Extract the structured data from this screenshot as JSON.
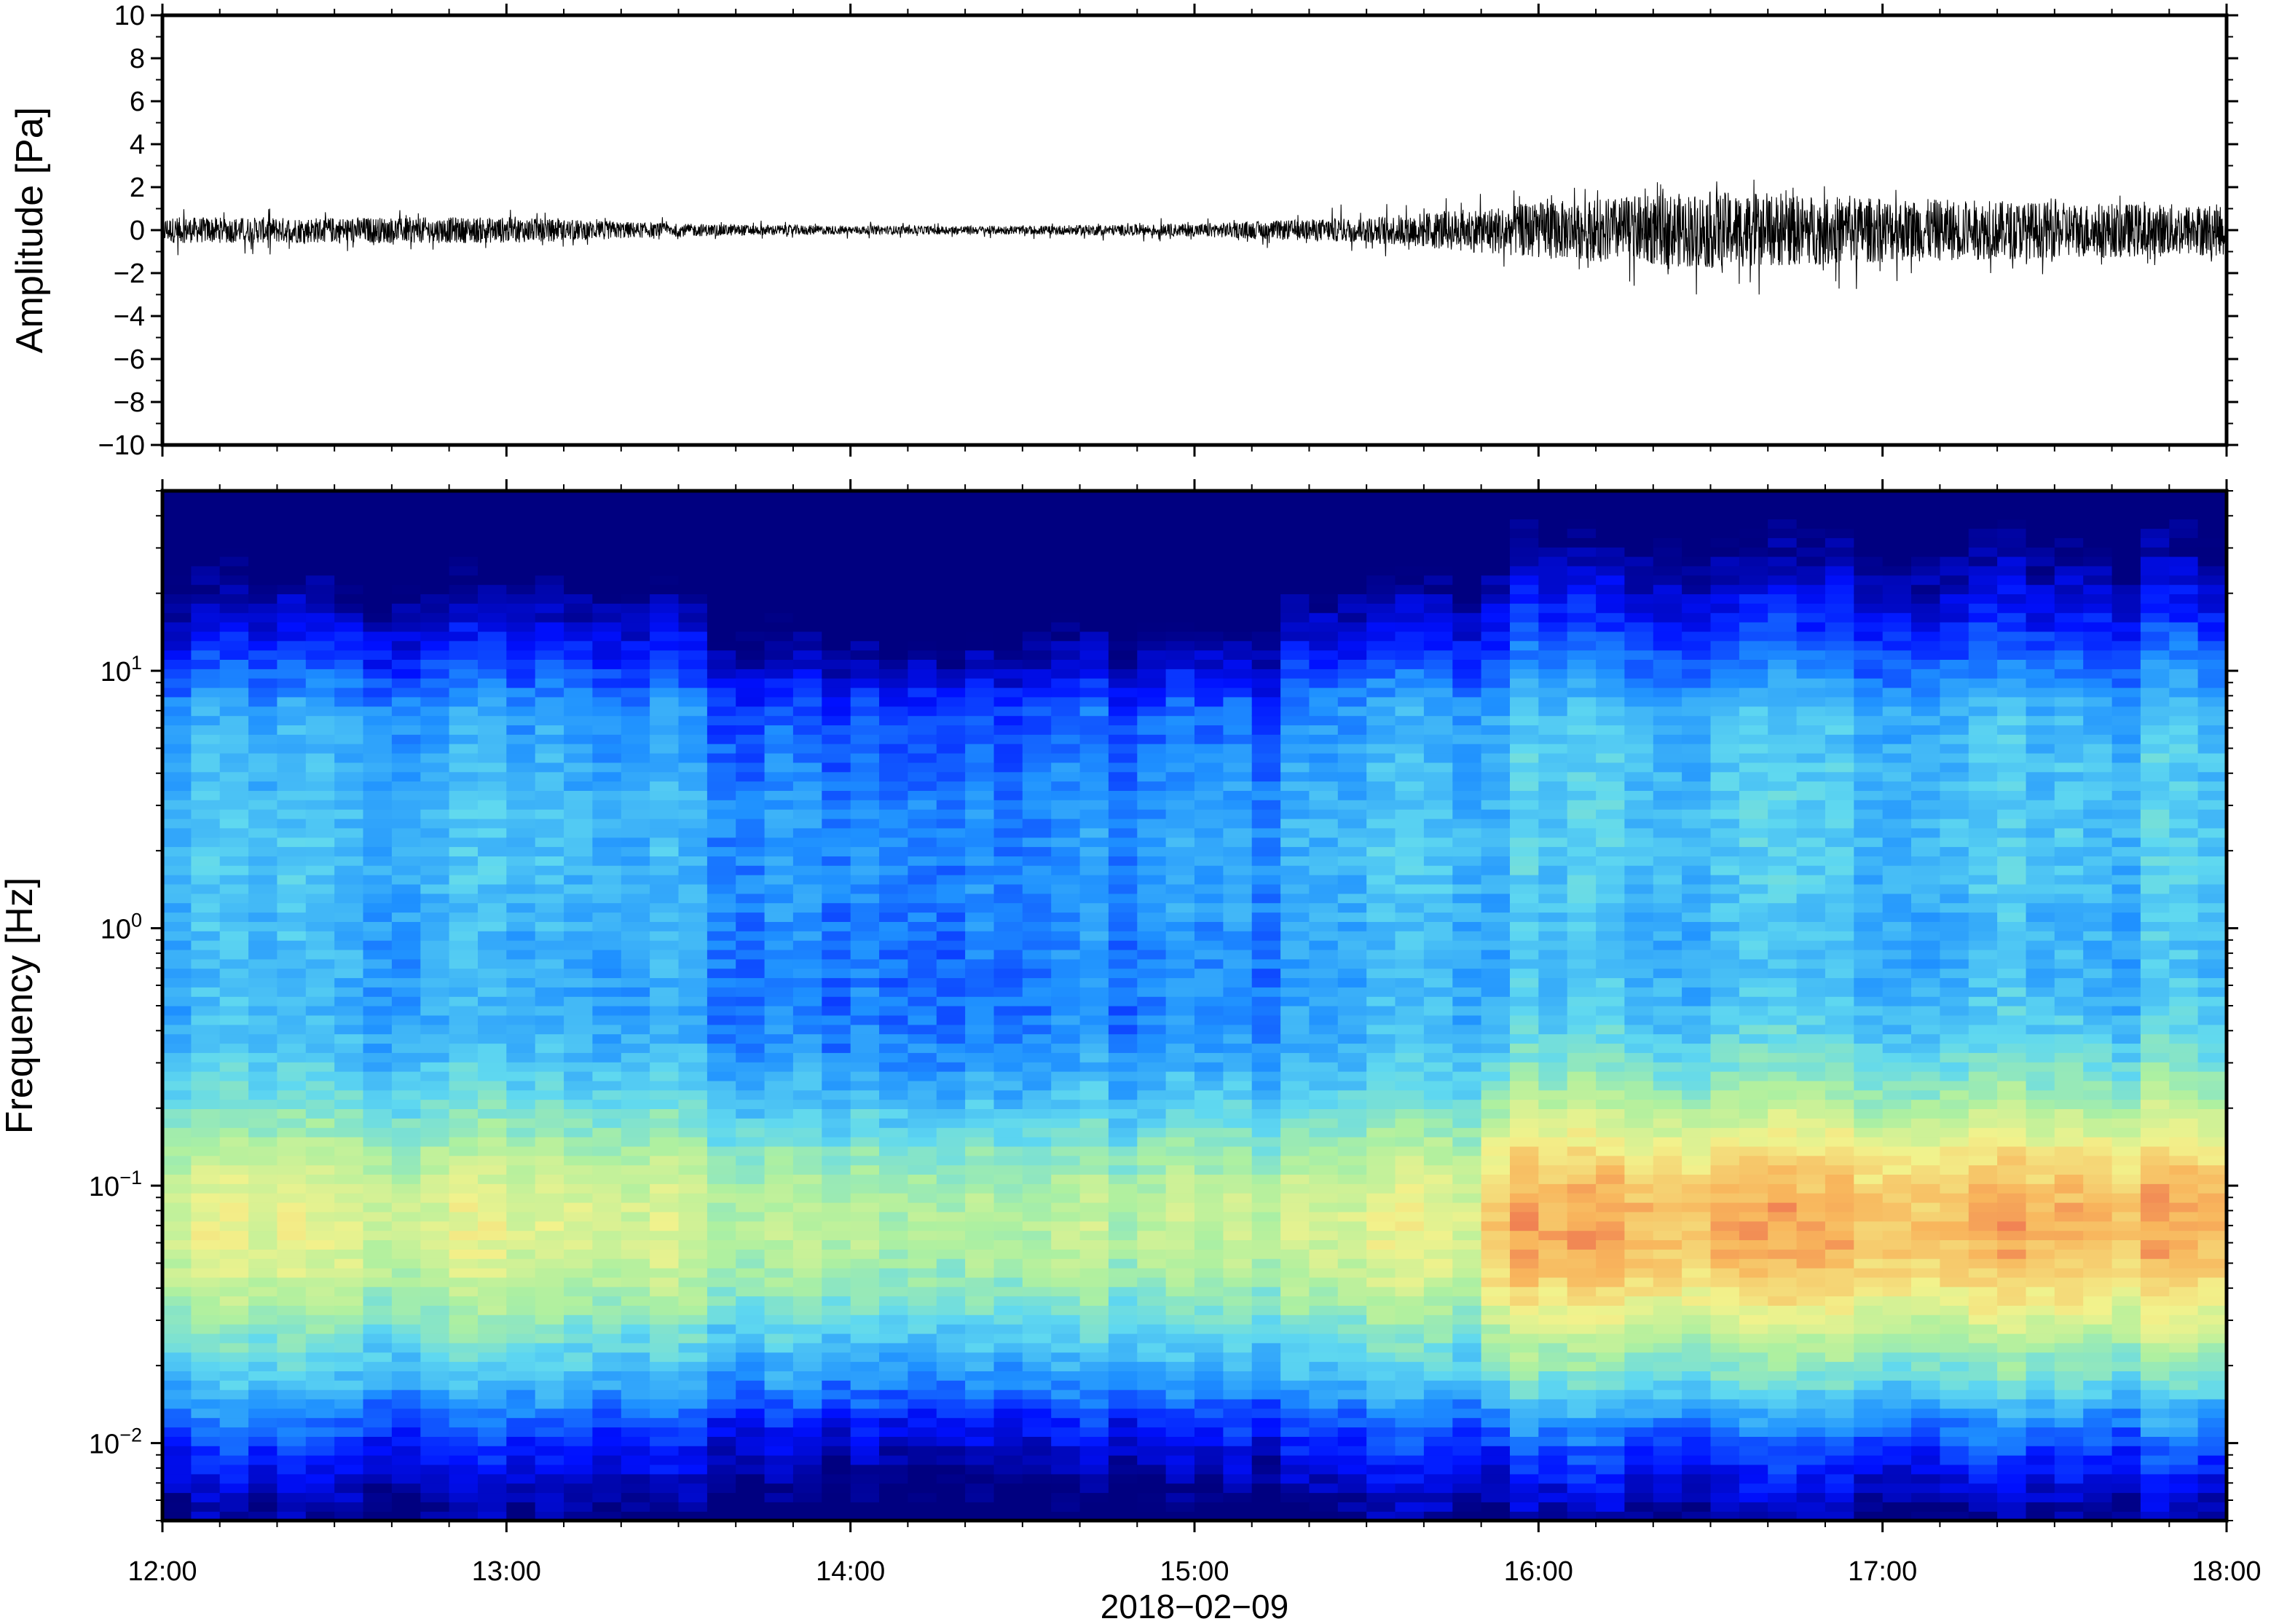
{
  "chart_data": [
    {
      "type": "line",
      "panel": "waveform",
      "ylabel": "Amplitude [Pa]",
      "xlabel": "",
      "xlim": [
        "12:00",
        "18:00"
      ],
      "ylim": [
        -10,
        10
      ],
      "yticks": [
        10,
        8,
        6,
        4,
        2,
        0,
        -2,
        -4,
        -6,
        -8,
        -10
      ],
      "ytick_labels": [
        "10",
        "8",
        "6",
        "4",
        "2",
        "0",
        "−2",
        "−4",
        "−6",
        "−8",
        "−10"
      ],
      "grid": false,
      "color": "#000000",
      "series": [
        {
          "x": [
            "12:00",
            "12:30",
            "13:00",
            "13:30",
            "14:00",
            "14:30",
            "15:00",
            "15:30",
            "16:00",
            "16:30",
            "17:00",
            "17:30",
            "18:00"
          ],
          "envelope": [
            0.6,
            0.6,
            0.6,
            0.3,
            0.2,
            0.2,
            0.3,
            0.6,
            1.3,
            1.8,
            1.5,
            1.3,
            1.2
          ],
          "peaks": [
            1.2,
            0.9,
            1.0,
            0.6,
            0.4,
            0.4,
            0.6,
            1.3,
            2.0,
            2.6,
            2.0,
            1.8,
            1.6
          ],
          "troughs": [
            -1.4,
            -1.0,
            -1.0,
            -0.5,
            -0.4,
            -0.4,
            -0.6,
            -1.2,
            -2.2,
            -3.1,
            -2.8,
            -2.0,
            -1.6
          ]
        }
      ]
    },
    {
      "type": "heatmap",
      "panel": "spectrogram",
      "ylabel": "Frequency [Hz]",
      "xlabel": "2018−02−09",
      "x_tick_labels": [
        "12:00",
        "13:00",
        "14:00",
        "15:00",
        "16:00",
        "17:00",
        "18:00"
      ],
      "xlim": [
        "12:00",
        "18:00"
      ],
      "yscale": "log",
      "ylim": [
        0.005,
        50
      ],
      "y_tick_labels": [
        {
          "value": 10,
          "base": "10",
          "exp": "1"
        },
        {
          "value": 1,
          "base": "10",
          "exp": "0"
        },
        {
          "value": 0.1,
          "base": "10",
          "exp": "−1"
        },
        {
          "value": 0.01,
          "base": "10",
          "exp": "−2"
        }
      ],
      "colormap": "jet",
      "colormap_stops": [
        "#000080",
        "#0010ff",
        "#1e90ff",
        "#5fd8f0",
        "#aef0a0",
        "#f2f28c",
        "#f8b55c",
        "#e84a4a"
      ],
      "features": {
        "quiet_period": [
          "13:30",
          "15:15"
        ],
        "energetic_period": [
          "15:50",
          "18:00"
        ],
        "dominant_frequency_Hz": 0.07
      }
    }
  ]
}
